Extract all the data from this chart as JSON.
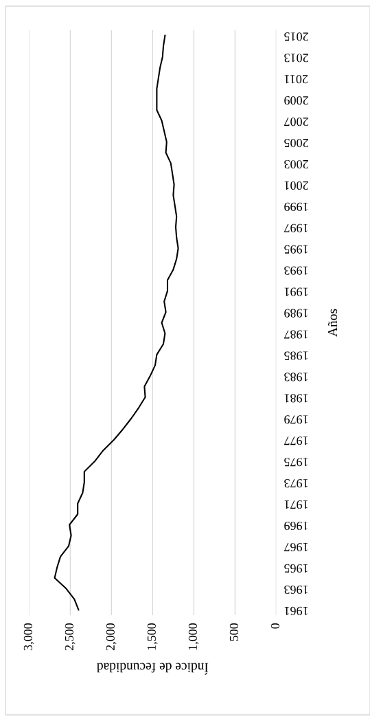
{
  "chart_data": {
    "type": "line",
    "orientation": "horizontal",
    "xlabel": "Índice de fecundidad",
    "ylabel": "Años",
    "categories": [
      "2015",
      null,
      "2013",
      null,
      "2011",
      null,
      "2009",
      null,
      "2007",
      null,
      "2005",
      null,
      "2003",
      null,
      "2001",
      null,
      "1999",
      null,
      "1997",
      null,
      "1995",
      null,
      "1993",
      null,
      "1991",
      null,
      "1989",
      null,
      "1987",
      null,
      "1985",
      null,
      "1983",
      null,
      "1981",
      null,
      "1979",
      null,
      "1977",
      null,
      "1975",
      null,
      "1973",
      null,
      "1971",
      null,
      "1969",
      null,
      "1967",
      null,
      "1965",
      null,
      "1963",
      null,
      "1961"
    ],
    "series": [
      {
        "color": "#000000",
        "values": [
          1350,
          1370,
          1380,
          1410,
          1430,
          1450,
          1450,
          1450,
          1390,
          1360,
          1330,
          1340,
          1280,
          1260,
          1240,
          1250,
          1230,
          1210,
          1220,
          1210,
          1190,
          1210,
          1250,
          1320,
          1320,
          1360,
          1340,
          1390,
          1350,
          1370,
          1450,
          1470,
          1530,
          1600,
          1590,
          1670,
          1760,
          1860,
          1970,
          2100,
          2200,
          2330,
          2330,
          2350,
          2410,
          2410,
          2510,
          2490,
          2520,
          2620,
          2660,
          2690,
          2550,
          2450,
          2400
        ]
      }
    ],
    "xlim": [
      3000,
      0
    ],
    "xticks": [
      {
        "value": 3000,
        "label": "3,000"
      },
      {
        "value": 2500,
        "label": "2,500"
      },
      {
        "value": 2000,
        "label": "2,000"
      },
      {
        "value": 1500,
        "label": "1,500"
      },
      {
        "value": 1000,
        "label": "1,000"
      },
      500,
      0
    ],
    "grid": "x",
    "legend": false,
    "marker": "none",
    "line_style": "solid"
  }
}
